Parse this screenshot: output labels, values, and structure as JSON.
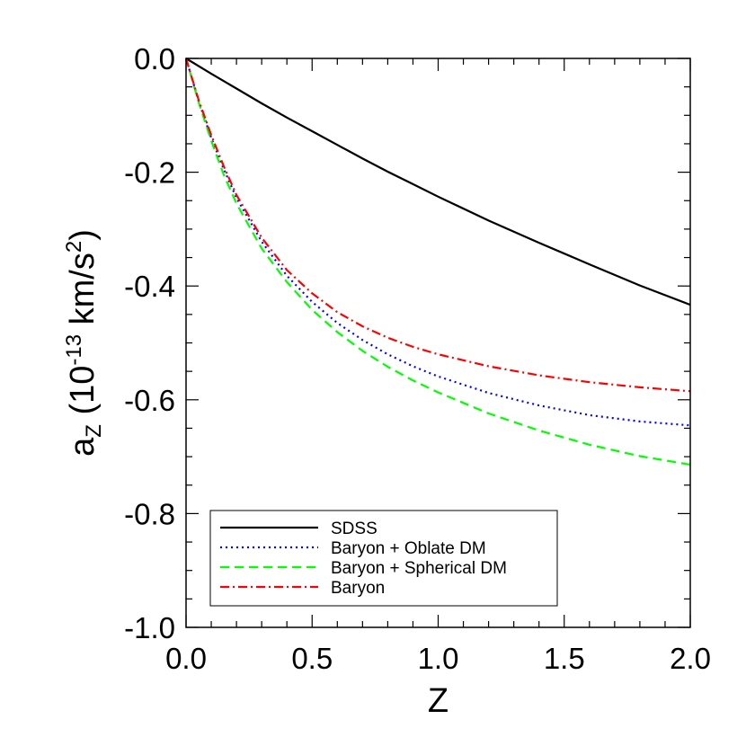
{
  "chart_data": {
    "type": "line",
    "xlabel": "Z",
    "ylabel": {
      "base": "a",
      "sub": "Z",
      "open": " (10",
      "exp": "-13",
      "unit": " km/s",
      "unit_exp": "2",
      "close": ")"
    },
    "xlim": [
      0.0,
      2.0
    ],
    "ylim": [
      -1.0,
      0.0
    ],
    "x_ticks": [
      0.0,
      0.5,
      1.0,
      1.5,
      2.0
    ],
    "x_tick_labels": [
      "0.0",
      "0.5",
      "1.0",
      "1.5",
      "2.0"
    ],
    "y_ticks": [
      0.0,
      -0.2,
      -0.4,
      -0.6,
      -0.8,
      -1.0
    ],
    "y_tick_labels": [
      "0.0",
      "-0.2",
      "-0.4",
      "-0.6",
      "-0.8",
      "-1.0"
    ],
    "x_minor_step": 0.1,
    "y_minor_step": 0.05,
    "grid": false,
    "legend_position": "bottom-left",
    "series": [
      {
        "name": "SDSS",
        "color": "#000000",
        "style": "solid",
        "x": [
          0.0,
          0.1,
          0.2,
          0.3,
          0.4,
          0.5,
          0.6,
          0.7,
          0.8,
          0.9,
          1.0,
          1.2,
          1.4,
          1.6,
          1.8,
          2.0
        ],
        "y": [
          0.0,
          -0.027,
          -0.053,
          -0.079,
          -0.104,
          -0.128,
          -0.152,
          -0.176,
          -0.199,
          -0.221,
          -0.243,
          -0.285,
          -0.324,
          -0.362,
          -0.399,
          -0.433
        ]
      },
      {
        "name": "Baryon + Oblate DM",
        "color": "#0000ff",
        "style": "dotted",
        "x": [
          0.0,
          0.05,
          0.1,
          0.15,
          0.2,
          0.3,
          0.4,
          0.5,
          0.6,
          0.7,
          0.8,
          0.9,
          1.0,
          1.2,
          1.4,
          1.6,
          1.8,
          2.0
        ],
        "y": [
          0.0,
          -0.075,
          -0.14,
          -0.195,
          -0.245,
          -0.322,
          -0.382,
          -0.428,
          -0.465,
          -0.495,
          -0.52,
          -0.541,
          -0.559,
          -0.588,
          -0.61,
          -0.627,
          -0.638,
          -0.645
        ]
      },
      {
        "name": "Baryon + Spherical DM",
        "color": "#00ff00",
        "style": "dashed",
        "x": [
          0.0,
          0.05,
          0.1,
          0.15,
          0.2,
          0.3,
          0.4,
          0.5,
          0.6,
          0.7,
          0.8,
          0.9,
          1.0,
          1.2,
          1.4,
          1.6,
          1.8,
          2.0
        ],
        "y": [
          0.0,
          -0.077,
          -0.145,
          -0.205,
          -0.255,
          -0.334,
          -0.393,
          -0.442,
          -0.481,
          -0.514,
          -0.542,
          -0.566,
          -0.587,
          -0.624,
          -0.654,
          -0.679,
          -0.699,
          -0.714
        ]
      },
      {
        "name": "Baryon",
        "color": "#ff0000",
        "style": "dashdot",
        "x": [
          0.0,
          0.05,
          0.1,
          0.15,
          0.2,
          0.3,
          0.4,
          0.5,
          0.6,
          0.7,
          0.8,
          0.9,
          1.0,
          1.2,
          1.4,
          1.6,
          1.8,
          2.0
        ],
        "y": [
          0.0,
          -0.073,
          -0.135,
          -0.19,
          -0.24,
          -0.315,
          -0.372,
          -0.413,
          -0.446,
          -0.471,
          -0.491,
          -0.507,
          -0.52,
          -0.541,
          -0.557,
          -0.569,
          -0.578,
          -0.585
        ]
      }
    ]
  }
}
